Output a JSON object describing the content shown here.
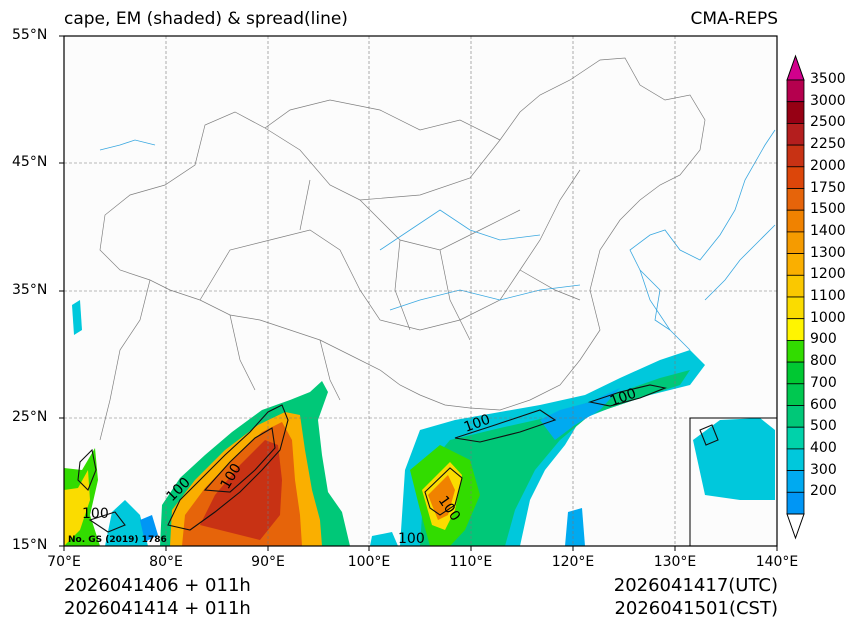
{
  "title": {
    "left": "cape, EM (shaded) & spread(line)",
    "right": "CMA-REPS"
  },
  "map": {
    "lon_range": [
      70,
      140
    ],
    "lat_range": [
      15,
      55
    ],
    "lat_labels": [
      "55°N",
      "45°N",
      "35°N",
      "25°N",
      "15°N"
    ],
    "lon_labels": [
      "70°E",
      "80°E",
      "90°E",
      "100°E",
      "110°E",
      "120°E",
      "130°E",
      "140°E"
    ],
    "contour_labels": [
      "100",
      "100",
      "100",
      "100",
      "100",
      "100",
      "100"
    ],
    "map_note": "No. GS (2019) 1786"
  },
  "colorbar": {
    "levels": [
      "3500",
      "3000",
      "2500",
      "2250",
      "2000",
      "1750",
      "1500",
      "1400",
      "1300",
      "1200",
      "1100",
      "1000",
      "900",
      "800",
      "700",
      "600",
      "500",
      "400",
      "300",
      "200"
    ],
    "colors": [
      "#b5004e",
      "#960014",
      "#b41e1e",
      "#c83214",
      "#dc460a",
      "#e6640a",
      "#f08200",
      "#f59b00",
      "#faaf00",
      "#fac800",
      "#fadc00",
      "#fff500",
      "#32dc00",
      "#00c832",
      "#00c850",
      "#00c878",
      "#00d2aa",
      "#00c8dc",
      "#00aaf0",
      "#0096f5"
    ],
    "top_arrow_color": "#d2008c"
  },
  "footer": {
    "init_utc": "2026041406  +  011h",
    "init_cst": "2026041414  +  011h",
    "valid_utc": "2026041417(UTC)",
    "valid_cst": "2026041501(CST)"
  }
}
